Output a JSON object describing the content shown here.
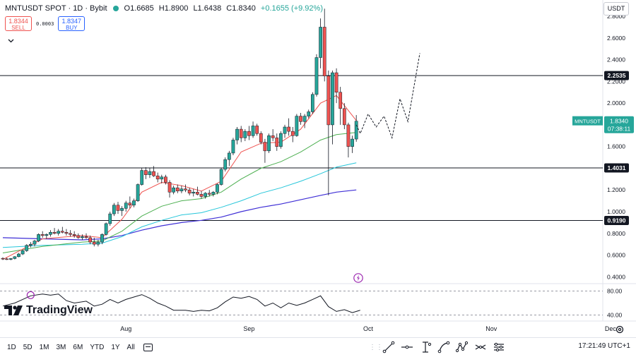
{
  "header": {
    "symbol": "MNTUSDT SPOT",
    "interval": "1D",
    "exchange": "Bybit",
    "separator": "·",
    "open": "O1.6685",
    "high": "H1.8900",
    "low": "L1.6438",
    "close": "C1.8340",
    "change": "+0.1655 (+9.92%)",
    "status_icon": "market-open-dot-icon"
  },
  "trade": {
    "sell_price": "1.8344",
    "sell_label": "SELL",
    "spread": "0.0003",
    "buy_price": "1.8347",
    "buy_label": "BUY"
  },
  "currency_button": "USDT",
  "logo_text": "TradingView",
  "price_badge": {
    "symbol": "MNTUSDT",
    "price": "1.8340",
    "countdown": "07:38:11"
  },
  "timeframes": [
    "1D",
    "5D",
    "1M",
    "3M",
    "6M",
    "YTD",
    "1Y",
    "All"
  ],
  "clock": "17:21:49 UTC+1",
  "drawing_tools": [
    "trend-line-icon",
    "horizontal-line-icon",
    "vertical-cursor-icon",
    "path-icon",
    "pattern-icon",
    "measure-icon",
    "filter-icon"
  ],
  "colors": {
    "up": "#26a69a",
    "down": "#ef5350",
    "ema_fast": "#ef5350",
    "ema_mid": "#4caf50",
    "ema_slow": "#26c6da",
    "ema_long": "#3f2fd6",
    "forecast": "#131722",
    "hline": "#131722"
  },
  "chart_data": {
    "type": "candlestick",
    "y_axis": {
      "min": 0.35,
      "max": 2.95,
      "ticks": [
        "0.4000",
        "0.6000",
        "0.8000",
        "1.0000",
        "1.2000",
        "1.4000",
        "1.6000",
        "1.8000",
        "2.0000",
        "2.2000",
        "2.4000",
        "2.6000",
        "2.8000"
      ]
    },
    "x_axis": {
      "labels": [
        "Aug",
        "Sep",
        "Oct",
        "Nov",
        "Dec"
      ],
      "label_days": [
        31,
        62,
        92,
        123,
        153
      ]
    },
    "horizontal_lines": [
      {
        "price": 2.2535,
        "label": "2.2535"
      },
      {
        "price": 1.4031,
        "label": "1.4031"
      },
      {
        "price": 0.919,
        "label": "0.9190"
      }
    ],
    "candles": [
      [
        0,
        0.57,
        0.58,
        0.555,
        0.565
      ],
      [
        1,
        0.565,
        0.575,
        0.555,
        0.56
      ],
      [
        2,
        0.56,
        0.572,
        0.552,
        0.568
      ],
      [
        3,
        0.568,
        0.59,
        0.56,
        0.585
      ],
      [
        4,
        0.585,
        0.62,
        0.58,
        0.61
      ],
      [
        5,
        0.61,
        0.65,
        0.6,
        0.64
      ],
      [
        6,
        0.64,
        0.7,
        0.63,
        0.69
      ],
      [
        7,
        0.69,
        0.72,
        0.67,
        0.7
      ],
      [
        8,
        0.7,
        0.74,
        0.68,
        0.73
      ],
      [
        9,
        0.73,
        0.8,
        0.72,
        0.79
      ],
      [
        10,
        0.79,
        0.82,
        0.76,
        0.78
      ],
      [
        11,
        0.78,
        0.8,
        0.75,
        0.79
      ],
      [
        12,
        0.79,
        0.83,
        0.77,
        0.81
      ],
      [
        13,
        0.81,
        0.85,
        0.79,
        0.8
      ],
      [
        14,
        0.8,
        0.84,
        0.78,
        0.82
      ],
      [
        15,
        0.82,
        0.86,
        0.8,
        0.81
      ],
      [
        16,
        0.81,
        0.84,
        0.78,
        0.8
      ],
      [
        17,
        0.8,
        0.83,
        0.77,
        0.79
      ],
      [
        18,
        0.79,
        0.82,
        0.76,
        0.78
      ],
      [
        19,
        0.78,
        0.8,
        0.75,
        0.76
      ],
      [
        20,
        0.76,
        0.79,
        0.74,
        0.77
      ],
      [
        21,
        0.77,
        0.8,
        0.75,
        0.76
      ],
      [
        22,
        0.76,
        0.78,
        0.7,
        0.72
      ],
      [
        23,
        0.72,
        0.76,
        0.68,
        0.7
      ],
      [
        24,
        0.7,
        0.74,
        0.68,
        0.72
      ],
      [
        25,
        0.72,
        0.8,
        0.7,
        0.79
      ],
      [
        26,
        0.79,
        0.9,
        0.78,
        0.89
      ],
      [
        27,
        0.89,
        1.0,
        0.87,
        0.98
      ],
      [
        28,
        0.98,
        1.08,
        0.96,
        1.06
      ],
      [
        29,
        1.06,
        1.09,
        0.98,
        1.01
      ],
      [
        30,
        1.01,
        1.05,
        0.96,
        1.03
      ],
      [
        31,
        1.03,
        1.1,
        1.0,
        1.08
      ],
      [
        32,
        1.08,
        1.14,
        1.03,
        1.06
      ],
      [
        33,
        1.06,
        1.12,
        1.04,
        1.1
      ],
      [
        34,
        1.1,
        1.26,
        1.09,
        1.25
      ],
      [
        35,
        1.25,
        1.4,
        1.24,
        1.38
      ],
      [
        36,
        1.38,
        1.41,
        1.3,
        1.34
      ],
      [
        37,
        1.34,
        1.4,
        1.31,
        1.37
      ],
      [
        38,
        1.37,
        1.42,
        1.32,
        1.33
      ],
      [
        39,
        1.33,
        1.36,
        1.27,
        1.3
      ],
      [
        40,
        1.3,
        1.34,
        1.26,
        1.32
      ],
      [
        41,
        1.32,
        1.34,
        1.25,
        1.27
      ],
      [
        42,
        1.27,
        1.29,
        1.13,
        1.18
      ],
      [
        43,
        1.18,
        1.24,
        1.16,
        1.22
      ],
      [
        44,
        1.22,
        1.25,
        1.17,
        1.19
      ],
      [
        45,
        1.19,
        1.24,
        1.17,
        1.21
      ],
      [
        46,
        1.21,
        1.25,
        1.18,
        1.2
      ],
      [
        47,
        1.2,
        1.22,
        1.15,
        1.17
      ],
      [
        48,
        1.17,
        1.21,
        1.14,
        1.18
      ],
      [
        49,
        1.18,
        1.23,
        1.15,
        1.16
      ],
      [
        50,
        1.16,
        1.19,
        1.12,
        1.14
      ],
      [
        51,
        1.14,
        1.18,
        1.12,
        1.17
      ],
      [
        52,
        1.17,
        1.2,
        1.14,
        1.16
      ],
      [
        53,
        1.16,
        1.19,
        1.14,
        1.18
      ],
      [
        54,
        1.18,
        1.26,
        1.16,
        1.25
      ],
      [
        55,
        1.25,
        1.4,
        1.24,
        1.39
      ],
      [
        56,
        1.39,
        1.5,
        1.37,
        1.48
      ],
      [
        57,
        1.48,
        1.56,
        1.42,
        1.54
      ],
      [
        58,
        1.54,
        1.68,
        1.52,
        1.66
      ],
      [
        59,
        1.66,
        1.78,
        1.62,
        1.76
      ],
      [
        60,
        1.76,
        1.79,
        1.64,
        1.68
      ],
      [
        61,
        1.68,
        1.76,
        1.65,
        1.74
      ],
      [
        62,
        1.74,
        1.79,
        1.66,
        1.7
      ],
      [
        63,
        1.7,
        1.83,
        1.68,
        1.79
      ],
      [
        64,
        1.79,
        1.81,
        1.7,
        1.72
      ],
      [
        65,
        1.72,
        1.74,
        1.62,
        1.64
      ],
      [
        66,
        1.64,
        1.67,
        1.45,
        1.56
      ],
      [
        67,
        1.56,
        1.72,
        1.54,
        1.7
      ],
      [
        68,
        1.7,
        1.76,
        1.65,
        1.68
      ],
      [
        69,
        1.68,
        1.72,
        1.56,
        1.6
      ],
      [
        70,
        1.6,
        1.74,
        1.58,
        1.72
      ],
      [
        71,
        1.72,
        1.8,
        1.68,
        1.78
      ],
      [
        72,
        1.78,
        1.86,
        1.7,
        1.74
      ],
      [
        73,
        1.74,
        1.78,
        1.64,
        1.7
      ],
      [
        74,
        1.7,
        1.9,
        1.69,
        1.88
      ],
      [
        75,
        1.88,
        1.91,
        1.8,
        1.83
      ],
      [
        76,
        1.83,
        1.9,
        1.77,
        1.88
      ],
      [
        77,
        1.88,
        1.94,
        1.86,
        1.92
      ],
      [
        78,
        1.92,
        2.1,
        1.9,
        2.08
      ],
      [
        79,
        2.08,
        2.45,
        2.06,
        2.42
      ],
      [
        80,
        2.42,
        2.78,
        2.32,
        2.7
      ],
      [
        81,
        2.7,
        2.87,
        2.2,
        2.25
      ],
      [
        82,
        2.25,
        2.3,
        1.15,
        1.8
      ],
      [
        83,
        1.8,
        2.3,
        1.62,
        2.28
      ],
      [
        84,
        2.28,
        2.32,
        2.0,
        2.1
      ],
      [
        85,
        2.1,
        2.15,
        1.8,
        1.95
      ],
      [
        86,
        1.95,
        2.0,
        1.76,
        1.8
      ],
      [
        87,
        1.8,
        1.82,
        1.5,
        1.6
      ],
      [
        88,
        1.6,
        1.7,
        1.54,
        1.669
      ],
      [
        89,
        1.669,
        1.89,
        1.644,
        1.834
      ]
    ],
    "ema_fast": [
      [
        0,
        0.56
      ],
      [
        10,
        0.75
      ],
      [
        20,
        0.78
      ],
      [
        25,
        0.76
      ],
      [
        30,
        0.93
      ],
      [
        35,
        1.18
      ],
      [
        40,
        1.27
      ],
      [
        45,
        1.24
      ],
      [
        50,
        1.19
      ],
      [
        55,
        1.28
      ],
      [
        60,
        1.55
      ],
      [
        65,
        1.63
      ],
      [
        70,
        1.64
      ],
      [
        75,
        1.76
      ],
      [
        80,
        2.0
      ],
      [
        84,
        2.07
      ],
      [
        89,
        1.84
      ]
    ],
    "ema_mid": [
      [
        0,
        0.62
      ],
      [
        10,
        0.68
      ],
      [
        20,
        0.72
      ],
      [
        25,
        0.73
      ],
      [
        30,
        0.82
      ],
      [
        35,
        0.96
      ],
      [
        40,
        1.05
      ],
      [
        45,
        1.1
      ],
      [
        50,
        1.12
      ],
      [
        55,
        1.18
      ],
      [
        60,
        1.3
      ],
      [
        65,
        1.4
      ],
      [
        70,
        1.46
      ],
      [
        75,
        1.55
      ],
      [
        80,
        1.66
      ],
      [
        84,
        1.71
      ],
      [
        89,
        1.73
      ]
    ],
    "ema_slow": [
      [
        0,
        0.67
      ],
      [
        10,
        0.69
      ],
      [
        20,
        0.7
      ],
      [
        25,
        0.71
      ],
      [
        30,
        0.77
      ],
      [
        35,
        0.86
      ],
      [
        40,
        0.92
      ],
      [
        45,
        0.97
      ],
      [
        50,
        0.99
      ],
      [
        55,
        1.04
      ],
      [
        60,
        1.1
      ],
      [
        65,
        1.17
      ],
      [
        70,
        1.22
      ],
      [
        75,
        1.28
      ],
      [
        80,
        1.35
      ],
      [
        84,
        1.41
      ],
      [
        89,
        1.45
      ]
    ],
    "ema_long": [
      [
        0,
        0.76
      ],
      [
        10,
        0.75
      ],
      [
        20,
        0.74
      ],
      [
        25,
        0.75
      ],
      [
        30,
        0.78
      ],
      [
        35,
        0.83
      ],
      [
        40,
        0.87
      ],
      [
        45,
        0.9
      ],
      [
        50,
        0.92
      ],
      [
        55,
        0.95
      ],
      [
        60,
        1.0
      ],
      [
        65,
        1.04
      ],
      [
        70,
        1.07
      ],
      [
        75,
        1.11
      ],
      [
        80,
        1.15
      ],
      [
        84,
        1.18
      ],
      [
        89,
        1.2
      ]
    ],
    "forecast_path": [
      [
        89,
        1.8
      ],
      [
        90,
        1.72
      ],
      [
        92,
        1.9
      ],
      [
        94,
        1.78
      ],
      [
        96,
        1.88
      ],
      [
        98,
        1.68
      ],
      [
        100,
        2.04
      ],
      [
        102,
        1.83
      ],
      [
        105,
        2.46
      ]
    ],
    "oscillator": {
      "ticks": [
        80,
        40
      ],
      "range": [
        30,
        90
      ],
      "values": [
        [
          0,
          55
        ],
        [
          3,
          60
        ],
        [
          5,
          66
        ],
        [
          7,
          72
        ],
        [
          10,
          75
        ],
        [
          12,
          73
        ],
        [
          14,
          75
        ],
        [
          16,
          64
        ],
        [
          18,
          60
        ],
        [
          21,
          63
        ],
        [
          23,
          55
        ],
        [
          25,
          58
        ],
        [
          27,
          66
        ],
        [
          29,
          60
        ],
        [
          31,
          66
        ],
        [
          33,
          70
        ],
        [
          35,
          74
        ],
        [
          37,
          68
        ],
        [
          39,
          60
        ],
        [
          41,
          55
        ],
        [
          43,
          48
        ],
        [
          46,
          48
        ],
        [
          48,
          46
        ],
        [
          50,
          48
        ],
        [
          52,
          47
        ],
        [
          54,
          52
        ],
        [
          56,
          62
        ],
        [
          58,
          70
        ],
        [
          60,
          68
        ],
        [
          62,
          71
        ],
        [
          64,
          66
        ],
        [
          66,
          55
        ],
        [
          68,
          60
        ],
        [
          70,
          52
        ],
        [
          72,
          60
        ],
        [
          74,
          56
        ],
        [
          76,
          60
        ],
        [
          78,
          66
        ],
        [
          80,
          72
        ],
        [
          82,
          54
        ],
        [
          84,
          46
        ],
        [
          86,
          49
        ],
        [
          88,
          44
        ],
        [
          90,
          48
        ]
      ]
    }
  }
}
